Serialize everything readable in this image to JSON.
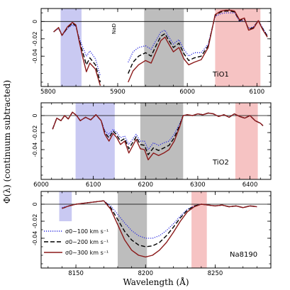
{
  "figure": {
    "ylabel": "Φ(λ) (continuum subtracted)",
    "xlabel": "Wavelength (Å)"
  },
  "legend": [
    {
      "text": "σ0~100 km s⁻¹",
      "color": "#2b2be0",
      "dash": "1.2,1.8"
    },
    {
      "text": "σ0~200 km s⁻¹",
      "color": "#000000",
      "dash": "6,3"
    },
    {
      "text": "σ0~300 km s⁻¹",
      "color": "#8b1a1a",
      "dash": ""
    }
  ],
  "colors": {
    "blue_band": "#c9c9f2",
    "grey_band": "#bdbdbd",
    "red_band": "#f6c3c3",
    "sigma100": "#2b2be0",
    "sigma200": "#000000",
    "sigma300": "#8b1a1a"
  },
  "chart_data": [
    {
      "type": "line",
      "label": "TiO1",
      "note": "NaD",
      "xlim": [
        5790,
        6120
      ],
      "ylim": [
        -0.075,
        0.015
      ],
      "xticks": [
        5800,
        5900,
        6000,
        6100
      ],
      "yticks": [
        0,
        -0.02,
        -0.04
      ],
      "ytick_labels": [
        "0",
        "-0.02",
        "-0.04"
      ],
      "bands": [
        {
          "kind": "blue",
          "from": 5818,
          "to": 5848
        },
        {
          "kind": "grey",
          "from": 5938,
          "to": 5995
        },
        {
          "kind": "red",
          "from": 6040,
          "to": 6105
        }
      ],
      "series": [
        {
          "name": "σ0~100 km s⁻¹",
          "x": [
            5808,
            5815,
            5820,
            5828,
            5835,
            5840,
            5845,
            5850,
            5855,
            5860,
            5868,
            5875,
            5880,
            5888,
            5893,
            5905,
            5915,
            5922,
            5930,
            5940,
            5948,
            5955,
            5962,
            5968,
            5972,
            5980,
            5988,
            5995,
            6002,
            6010,
            6020,
            6030,
            6040,
            6048,
            6055,
            6062,
            6068,
            6075,
            6082,
            6088,
            6095,
            6102,
            6108,
            6115
          ],
          "y": [
            -0.012,
            -0.008,
            -0.016,
            -0.008,
            -0.004,
            -0.006,
            -0.02,
            -0.03,
            -0.04,
            -0.034,
            -0.043,
            -0.063,
            null,
            null,
            null,
            null,
            -0.047,
            -0.035,
            -0.03,
            -0.028,
            -0.032,
            -0.022,
            -0.012,
            -0.01,
            -0.016,
            -0.026,
            -0.021,
            -0.032,
            -0.04,
            -0.036,
            -0.036,
            -0.026,
            0.006,
            0.009,
            0.01,
            0.01,
            0.01,
            0.0,
            0.002,
            -0.008,
            -0.006,
            0.001,
            -0.007,
            -0.016
          ]
        },
        {
          "name": "σ0~200 km s⁻¹",
          "x": [
            5808,
            5815,
            5820,
            5828,
            5835,
            5840,
            5845,
            5850,
            5855,
            5860,
            5868,
            5875,
            5880,
            5888,
            5893,
            5905,
            5915,
            5922,
            5930,
            5940,
            5948,
            5955,
            5962,
            5968,
            5972,
            5980,
            5988,
            5995,
            6002,
            6010,
            6020,
            6030,
            6040,
            6048,
            6055,
            6062,
            6068,
            6075,
            6082,
            6088,
            6095,
            6102,
            6108,
            6115
          ],
          "y": [
            -0.012,
            -0.007,
            -0.016,
            -0.007,
            -0.002,
            -0.005,
            -0.022,
            -0.036,
            -0.05,
            -0.042,
            -0.05,
            -0.07,
            null,
            null,
            null,
            null,
            -0.06,
            -0.047,
            -0.04,
            -0.036,
            -0.04,
            -0.028,
            -0.017,
            -0.014,
            -0.02,
            -0.03,
            -0.025,
            -0.037,
            -0.045,
            -0.042,
            -0.04,
            -0.028,
            0.007,
            0.011,
            0.012,
            0.012,
            0.011,
            0.001,
            0.003,
            -0.009,
            -0.007,
            0.001,
            -0.008,
            -0.017
          ]
        },
        {
          "name": "σ0~300 km s⁻¹",
          "x": [
            5808,
            5815,
            5820,
            5828,
            5835,
            5840,
            5845,
            5850,
            5855,
            5860,
            5868,
            5875,
            5880,
            5888,
            5893,
            5905,
            5915,
            5922,
            5930,
            5940,
            5948,
            5955,
            5962,
            5968,
            5972,
            5980,
            5988,
            5995,
            6002,
            6010,
            6020,
            6030,
            6040,
            6048,
            6055,
            6062,
            6068,
            6075,
            6082,
            6088,
            6095,
            6102,
            6108,
            6115
          ],
          "y": [
            -0.012,
            -0.007,
            -0.016,
            -0.006,
            -0.001,
            -0.004,
            -0.024,
            -0.042,
            -0.058,
            -0.048,
            -0.055,
            -0.074,
            null,
            null,
            null,
            null,
            -0.07,
            -0.057,
            -0.05,
            -0.045,
            -0.048,
            -0.035,
            -0.022,
            -0.018,
            -0.024,
            -0.035,
            -0.03,
            -0.043,
            -0.05,
            -0.047,
            -0.044,
            -0.03,
            0.008,
            0.012,
            0.013,
            0.013,
            0.012,
            0.002,
            0.004,
            -0.01,
            -0.008,
            0.001,
            -0.009,
            -0.018
          ]
        }
      ]
    },
    {
      "type": "line",
      "label": "TiO2",
      "xlim": [
        6000,
        6440
      ],
      "ylim": [
        -0.075,
        0.015
      ],
      "xticks": [
        6000,
        6100,
        6200,
        6300,
        6400
      ],
      "yticks": [
        0,
        -0.02,
        -0.04
      ],
      "ytick_labels": [
        "0",
        "-0.02",
        "-0.04"
      ],
      "bands": [
        {
          "kind": "blue",
          "from": 6066,
          "to": 6141
        },
        {
          "kind": "grey",
          "from": 6190,
          "to": 6272
        },
        {
          "kind": "red",
          "from": 6372,
          "to": 6415
        }
      ],
      "series": [
        {
          "name": "σ0~100 km s⁻¹",
          "x": [
            6022,
            6030,
            6038,
            6045,
            6052,
            6060,
            6068,
            6075,
            6085,
            6095,
            6105,
            6115,
            6122,
            6130,
            6138,
            6145,
            6152,
            6160,
            6168,
            6175,
            6182,
            6190,
            6198,
            6205,
            6215,
            6225,
            6235,
            6245,
            6255,
            6265,
            6272,
            6280,
            6290,
            6300,
            6310,
            6320,
            6330,
            6340,
            6350,
            6360,
            6370,
            6380,
            6390,
            6400,
            6410,
            6420,
            6425
          ],
          "y": [
            -0.015,
            -0.003,
            -0.006,
            0.0,
            -0.004,
            0.004,
            0.0,
            -0.006,
            -0.002,
            -0.005,
            0.001,
            -0.006,
            -0.018,
            -0.022,
            -0.016,
            -0.02,
            -0.026,
            -0.024,
            -0.034,
            -0.028,
            -0.022,
            -0.03,
            -0.03,
            -0.04,
            -0.032,
            -0.035,
            -0.032,
            -0.03,
            -0.022,
            -0.01,
            0.0,
            0.001,
            0.0,
            0.002,
            0.001,
            0.003,
            0.002,
            -0.001,
            0.001,
            -0.002,
            0.002,
            -0.001,
            -0.003,
            0.0,
            -0.006,
            -0.009,
            -0.012
          ]
        },
        {
          "name": "σ0~200 km s⁻¹",
          "x": [
            6022,
            6030,
            6038,
            6045,
            6052,
            6060,
            6068,
            6075,
            6085,
            6095,
            6105,
            6115,
            6122,
            6130,
            6138,
            6145,
            6152,
            6160,
            6168,
            6175,
            6182,
            6190,
            6198,
            6205,
            6215,
            6225,
            6235,
            6245,
            6255,
            6265,
            6272,
            6280,
            6290,
            6300,
            6310,
            6320,
            6330,
            6340,
            6350,
            6360,
            6370,
            6380,
            6390,
            6400,
            6410,
            6420,
            6425
          ],
          "y": [
            -0.016,
            -0.003,
            -0.006,
            0.0,
            -0.004,
            0.004,
            0.0,
            -0.006,
            -0.002,
            -0.005,
            0.001,
            -0.006,
            -0.02,
            -0.026,
            -0.018,
            -0.023,
            -0.03,
            -0.027,
            -0.039,
            -0.032,
            -0.025,
            -0.034,
            -0.035,
            -0.046,
            -0.038,
            -0.041,
            -0.038,
            -0.035,
            -0.026,
            -0.012,
            0.0,
            0.001,
            0.0,
            0.002,
            0.001,
            0.003,
            0.002,
            -0.001,
            0.001,
            -0.002,
            0.002,
            -0.001,
            -0.003,
            0.0,
            -0.006,
            -0.009,
            -0.012
          ]
        },
        {
          "name": "σ0~300 km s⁻¹",
          "x": [
            6022,
            6030,
            6038,
            6045,
            6052,
            6060,
            6068,
            6075,
            6085,
            6095,
            6105,
            6115,
            6122,
            6130,
            6138,
            6145,
            6152,
            6160,
            6168,
            6175,
            6182,
            6190,
            6198,
            6205,
            6215,
            6225,
            6235,
            6245,
            6255,
            6265,
            6272,
            6280,
            6290,
            6300,
            6310,
            6320,
            6330,
            6340,
            6350,
            6360,
            6370,
            6380,
            6390,
            6400,
            6410,
            6420,
            6425
          ],
          "y": [
            -0.016,
            -0.003,
            -0.006,
            0.0,
            -0.004,
            0.004,
            0.0,
            -0.006,
            -0.002,
            -0.005,
            0.001,
            -0.006,
            -0.022,
            -0.03,
            -0.021,
            -0.026,
            -0.034,
            -0.03,
            -0.044,
            -0.036,
            -0.028,
            -0.039,
            -0.04,
            -0.052,
            -0.044,
            -0.047,
            -0.044,
            -0.04,
            -0.03,
            -0.014,
            0.0,
            0.001,
            0.0,
            0.002,
            0.001,
            0.003,
            0.002,
            -0.001,
            0.001,
            -0.002,
            0.002,
            -0.001,
            -0.003,
            0.0,
            -0.006,
            -0.009,
            -0.012
          ]
        }
      ]
    },
    {
      "type": "line",
      "label": "Na8190",
      "xlim": [
        8125,
        8290
      ],
      "ylim": [
        -0.075,
        0.015
      ],
      "xticks": [
        8150,
        8200,
        8250
      ],
      "yticks": [
        0,
        -0.02,
        -0.04
      ],
      "ytick_labels": [
        "0",
        "-0.02",
        "-0.04"
      ],
      "bands": [
        {
          "kind": "blue",
          "from": 8138,
          "to": 8147,
          "ylow": -0.02
        },
        {
          "kind": "grey",
          "from": 8180,
          "to": 8201
        },
        {
          "kind": "red",
          "from": 8233,
          "to": 8244
        }
      ],
      "series": [
        {
          "name": "σ0~100 km s⁻¹",
          "x": [
            8140,
            8145,
            8150,
            8155,
            8160,
            8165,
            8170,
            8175,
            8180,
            8185,
            8190,
            8195,
            8200,
            8205,
            8210,
            8215,
            8220,
            8225,
            8230,
            8235,
            8240,
            8245,
            8250,
            8255,
            8260,
            8265,
            8270,
            8275,
            8280
          ],
          "y": [
            -0.004,
            -0.002,
            0.0,
            0.001,
            0.002,
            0.003,
            0.004,
            -0.002,
            -0.012,
            -0.022,
            -0.031,
            -0.037,
            -0.04,
            -0.04,
            -0.037,
            -0.031,
            -0.023,
            -0.014,
            -0.006,
            -0.002,
            0.0,
            -0.001,
            -0.002,
            -0.001,
            -0.003,
            -0.002,
            -0.004,
            -0.002,
            -0.003
          ]
        },
        {
          "name": "σ0~200 km s⁻¹",
          "x": [
            8140,
            8145,
            8150,
            8155,
            8160,
            8165,
            8170,
            8175,
            8180,
            8185,
            8190,
            8195,
            8200,
            8205,
            8210,
            8215,
            8220,
            8225,
            8230,
            8235,
            8240,
            8245,
            8250,
            8255,
            8260,
            8265,
            8270,
            8275,
            8280
          ],
          "y": [
            -0.005,
            -0.002,
            0.0,
            0.001,
            0.002,
            0.003,
            0.004,
            -0.004,
            -0.018,
            -0.032,
            -0.042,
            -0.048,
            -0.05,
            -0.049,
            -0.045,
            -0.037,
            -0.027,
            -0.016,
            -0.007,
            -0.002,
            0.0,
            -0.001,
            -0.002,
            -0.001,
            -0.003,
            -0.002,
            -0.004,
            -0.002,
            -0.003
          ]
        },
        {
          "name": "σ0~300 km s⁻¹",
          "x": [
            8140,
            8145,
            8150,
            8155,
            8160,
            8165,
            8170,
            8175,
            8180,
            8185,
            8190,
            8195,
            8200,
            8205,
            8210,
            8215,
            8220,
            8225,
            8230,
            8235,
            8240,
            8245,
            8250,
            8255,
            8260,
            8265,
            8270,
            8275,
            8280
          ],
          "y": [
            -0.005,
            -0.002,
            0.0,
            0.001,
            0.002,
            0.003,
            0.004,
            -0.006,
            -0.024,
            -0.042,
            -0.054,
            -0.06,
            -0.062,
            -0.06,
            -0.054,
            -0.045,
            -0.033,
            -0.02,
            -0.009,
            -0.003,
            0.0,
            -0.001,
            -0.002,
            -0.001,
            -0.003,
            -0.002,
            -0.004,
            -0.002,
            -0.003
          ]
        }
      ]
    }
  ]
}
